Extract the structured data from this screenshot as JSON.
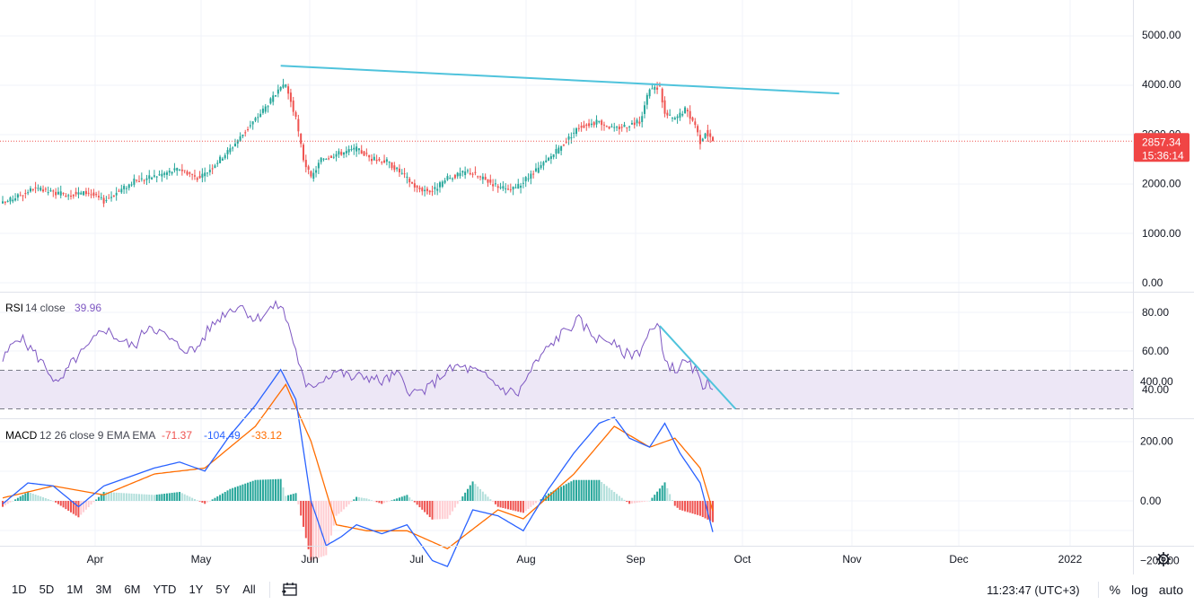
{
  "chart_data": [
    {
      "type": "candlestick",
      "price_scale_ticks": [
        "5000.00",
        "4000.00",
        "3000.00",
        "2000.00",
        "1000.00",
        "0.00"
      ],
      "ylim": [
        0,
        5000
      ],
      "last_price": "2857.34",
      "countdown": "15:36:14",
      "x_tick_labels": [
        "Apr",
        "May",
        "Jun",
        "Jul",
        "Aug",
        "Sep",
        "Oct",
        "Nov",
        "Dec",
        "2022"
      ],
      "anchors": [
        {
          "x": 0,
          "y": 1600
        },
        {
          "x": 12,
          "y": 1900
        },
        {
          "x": 24,
          "y": 1780
        },
        {
          "x": 34,
          "y": 1820
        },
        {
          "x": 40,
          "y": 1650
        },
        {
          "x": 52,
          "y": 2050
        },
        {
          "x": 60,
          "y": 2150
        },
        {
          "x": 70,
          "y": 2300
        },
        {
          "x": 78,
          "y": 2100
        },
        {
          "x": 90,
          "y": 2700
        },
        {
          "x": 100,
          "y": 3300
        },
        {
          "x": 108,
          "y": 3800
        },
        {
          "x": 112,
          "y": 4000
        },
        {
          "x": 116,
          "y": 3300
        },
        {
          "x": 119,
          "y": 2500
        },
        {
          "x": 122,
          "y": 2100
        },
        {
          "x": 126,
          "y": 2500
        },
        {
          "x": 132,
          "y": 2600
        },
        {
          "x": 140,
          "y": 2700
        },
        {
          "x": 146,
          "y": 2500
        },
        {
          "x": 152,
          "y": 2450
        },
        {
          "x": 158,
          "y": 2200
        },
        {
          "x": 164,
          "y": 1900
        },
        {
          "x": 170,
          "y": 1850
        },
        {
          "x": 176,
          "y": 2100
        },
        {
          "x": 184,
          "y": 2250
        },
        {
          "x": 192,
          "y": 2050
        },
        {
          "x": 200,
          "y": 1850
        },
        {
          "x": 204,
          "y": 1950
        },
        {
          "x": 212,
          "y": 2300
        },
        {
          "x": 220,
          "y": 2700
        },
        {
          "x": 228,
          "y": 3150
        },
        {
          "x": 236,
          "y": 3250
        },
        {
          "x": 242,
          "y": 3100
        },
        {
          "x": 248,
          "y": 3200
        },
        {
          "x": 252,
          "y": 3250
        },
        {
          "x": 256,
          "y": 3900
        },
        {
          "x": 260,
          "y": 3950
        },
        {
          "x": 262,
          "y": 3400
        },
        {
          "x": 266,
          "y": 3300
        },
        {
          "x": 270,
          "y": 3500
        },
        {
          "x": 274,
          "y": 3200
        },
        {
          "x": 276,
          "y": 2850
        },
        {
          "x": 278,
          "y": 3050
        },
        {
          "x": 281,
          "y": 2857
        }
      ],
      "trendline": [
        {
          "x": 110,
          "y": 4380
        },
        {
          "x": 331,
          "y": 3820
        }
      ]
    },
    {
      "type": "line",
      "indicator": "RSI",
      "legend": {
        "name": "RSI",
        "params": "14 close",
        "value": "39.96"
      },
      "ticks": [
        "80.00",
        "60.00",
        "40.00"
      ],
      "ylim": [
        30,
        87
      ],
      "band": [
        30,
        50
      ],
      "anchors": [
        {
          "x": 0,
          "y": 55
        },
        {
          "x": 6,
          "y": 68
        },
        {
          "x": 12,
          "y": 60
        },
        {
          "x": 18,
          "y": 50
        },
        {
          "x": 22,
          "y": 42
        },
        {
          "x": 28,
          "y": 55
        },
        {
          "x": 34,
          "y": 62
        },
        {
          "x": 40,
          "y": 72
        },
        {
          "x": 46,
          "y": 66
        },
        {
          "x": 52,
          "y": 62
        },
        {
          "x": 58,
          "y": 74
        },
        {
          "x": 64,
          "y": 68
        },
        {
          "x": 70,
          "y": 62
        },
        {
          "x": 76,
          "y": 60
        },
        {
          "x": 82,
          "y": 72
        },
        {
          "x": 88,
          "y": 80
        },
        {
          "x": 94,
          "y": 84
        },
        {
          "x": 100,
          "y": 76
        },
        {
          "x": 106,
          "y": 82
        },
        {
          "x": 110,
          "y": 84
        },
        {
          "x": 114,
          "y": 70
        },
        {
          "x": 117,
          "y": 55
        },
        {
          "x": 120,
          "y": 40
        },
        {
          "x": 126,
          "y": 45
        },
        {
          "x": 132,
          "y": 50
        },
        {
          "x": 138,
          "y": 46
        },
        {
          "x": 144,
          "y": 47
        },
        {
          "x": 150,
          "y": 44
        },
        {
          "x": 156,
          "y": 48
        },
        {
          "x": 162,
          "y": 38
        },
        {
          "x": 168,
          "y": 40
        },
        {
          "x": 174,
          "y": 48
        },
        {
          "x": 180,
          "y": 52
        },
        {
          "x": 186,
          "y": 50
        },
        {
          "x": 192,
          "y": 46
        },
        {
          "x": 198,
          "y": 40
        },
        {
          "x": 204,
          "y": 38
        },
        {
          "x": 210,
          "y": 52
        },
        {
          "x": 216,
          "y": 62
        },
        {
          "x": 222,
          "y": 70
        },
        {
          "x": 228,
          "y": 76
        },
        {
          "x": 232,
          "y": 70
        },
        {
          "x": 236,
          "y": 66
        },
        {
          "x": 240,
          "y": 66
        },
        {
          "x": 244,
          "y": 60
        },
        {
          "x": 248,
          "y": 58
        },
        {
          "x": 252,
          "y": 60
        },
        {
          "x": 256,
          "y": 70
        },
        {
          "x": 260,
          "y": 72
        },
        {
          "x": 262,
          "y": 55
        },
        {
          "x": 266,
          "y": 50
        },
        {
          "x": 270,
          "y": 54
        },
        {
          "x": 274,
          "y": 50
        },
        {
          "x": 277,
          "y": 40
        },
        {
          "x": 279,
          "y": 47
        },
        {
          "x": 281,
          "y": 39.96
        }
      ],
      "trendline": [
        {
          "x": 260,
          "y": 73
        },
        {
          "x": 290,
          "y": 30
        }
      ]
    },
    {
      "type": "line",
      "indicator": "MACD",
      "legend": {
        "name": "MACD",
        "params": "12 26 close 9 EMA EMA",
        "histogram": "-71.37",
        "macd": "-104.49",
        "signal": "-33.12"
      },
      "ticks": [
        "400.00",
        "200.00",
        "0.00",
        "−200.00"
      ],
      "ylim": [
        -300,
        470
      ],
      "macd_anchors": [
        {
          "x": 0,
          "y": -10
        },
        {
          "x": 10,
          "y": 60
        },
        {
          "x": 20,
          "y": 50
        },
        {
          "x": 30,
          "y": -20
        },
        {
          "x": 40,
          "y": 50
        },
        {
          "x": 50,
          "y": 80
        },
        {
          "x": 60,
          "y": 110
        },
        {
          "x": 70,
          "y": 130
        },
        {
          "x": 80,
          "y": 100
        },
        {
          "x": 90,
          "y": 220
        },
        {
          "x": 100,
          "y": 320
        },
        {
          "x": 110,
          "y": 440
        },
        {
          "x": 116,
          "y": 340
        },
        {
          "x": 122,
          "y": 0
        },
        {
          "x": 128,
          "y": -150
        },
        {
          "x": 134,
          "y": -120
        },
        {
          "x": 140,
          "y": -80
        },
        {
          "x": 150,
          "y": -110
        },
        {
          "x": 160,
          "y": -80
        },
        {
          "x": 170,
          "y": -200
        },
        {
          "x": 176,
          "y": -220
        },
        {
          "x": 186,
          "y": -30
        },
        {
          "x": 196,
          "y": -50
        },
        {
          "x": 206,
          "y": -100
        },
        {
          "x": 216,
          "y": 40
        },
        {
          "x": 226,
          "y": 160
        },
        {
          "x": 236,
          "y": 260
        },
        {
          "x": 242,
          "y": 280
        },
        {
          "x": 248,
          "y": 210
        },
        {
          "x": 256,
          "y": 180
        },
        {
          "x": 262,
          "y": 260
        },
        {
          "x": 268,
          "y": 160
        },
        {
          "x": 276,
          "y": 60
        },
        {
          "x": 281,
          "y": -104.49
        }
      ],
      "signal_anchors": [
        {
          "x": 0,
          "y": 10
        },
        {
          "x": 20,
          "y": 50
        },
        {
          "x": 40,
          "y": 20
        },
        {
          "x": 60,
          "y": 90
        },
        {
          "x": 80,
          "y": 110
        },
        {
          "x": 100,
          "y": 250
        },
        {
          "x": 112,
          "y": 390
        },
        {
          "x": 122,
          "y": 200
        },
        {
          "x": 132,
          "y": -80
        },
        {
          "x": 144,
          "y": -100
        },
        {
          "x": 160,
          "y": -100
        },
        {
          "x": 176,
          "y": -160
        },
        {
          "x": 196,
          "y": -30
        },
        {
          "x": 206,
          "y": -60
        },
        {
          "x": 226,
          "y": 90
        },
        {
          "x": 242,
          "y": 250
        },
        {
          "x": 256,
          "y": 180
        },
        {
          "x": 266,
          "y": 210
        },
        {
          "x": 276,
          "y": 110
        },
        {
          "x": 281,
          "y": -33.12
        }
      ]
    }
  ],
  "colors": {
    "up": "#26a69a",
    "down": "#ef5350",
    "trendline": "#4fc3dc",
    "rsi": "#7e57c2",
    "rsi_band": "#ede7f6",
    "macd": "#2962ff",
    "signal": "#ff6d00",
    "grid": "#f0f3fa",
    "price_tag": "#f04545"
  },
  "toolbar": {
    "ranges": [
      "1D",
      "5D",
      "1M",
      "3M",
      "6M",
      "YTD",
      "1Y",
      "5Y",
      "All"
    ],
    "date_range_icon": "calendar-range-icon",
    "clock": "11:23:47 (UTC+3)",
    "percent": "%",
    "log": "log",
    "auto": "auto",
    "settings_icon": "gear-icon"
  }
}
